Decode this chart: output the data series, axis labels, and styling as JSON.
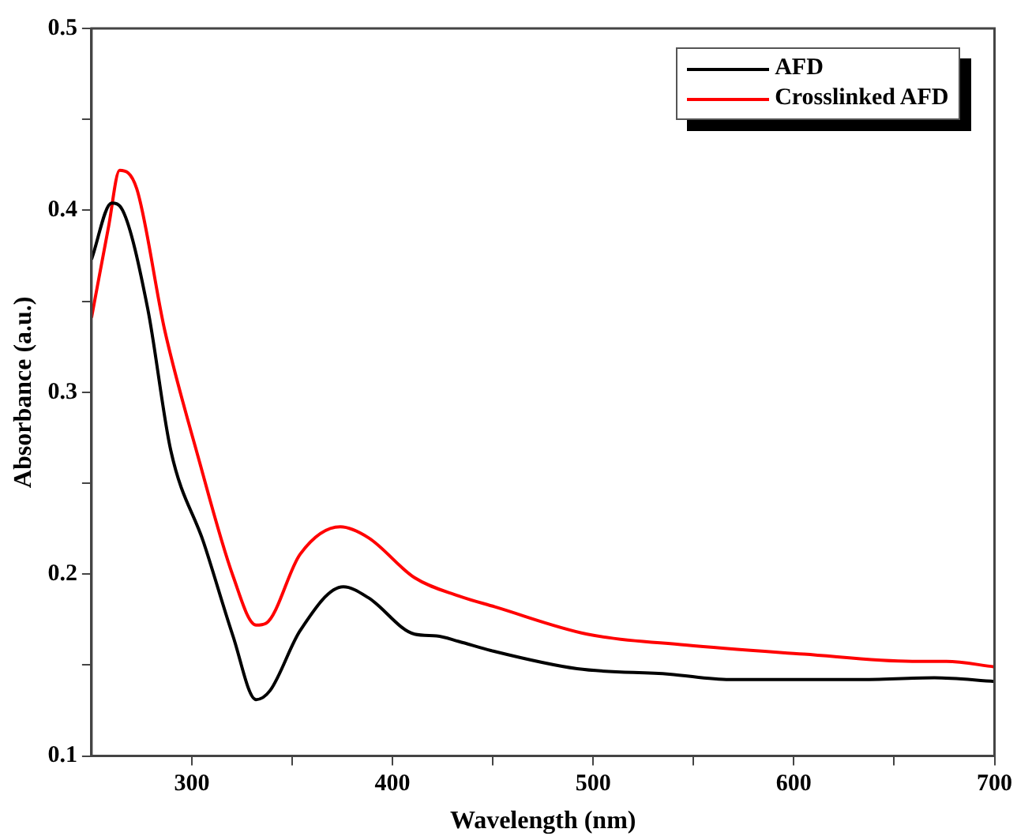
{
  "chart_data": {
    "type": "line",
    "xlabel": "Wavelength (nm)",
    "ylabel": "Absorbance (a.u.)",
    "xlim": [
      250,
      700
    ],
    "ylim": [
      0.1,
      0.5
    ],
    "xticks": [
      300,
      {
        "value": 350,
        "label": null
      },
      400,
      {
        "value": 450,
        "label": null
      },
      500,
      {
        "value": 550,
        "label": null
      },
      600,
      {
        "value": 650,
        "label": null
      },
      700
    ],
    "yticks": [
      0.1,
      {
        "value": 0.15,
        "label": null
      },
      0.2,
      {
        "value": 0.25,
        "label": null
      },
      0.3,
      {
        "value": 0.35,
        "label": null
      },
      0.4,
      {
        "value": 0.45,
        "label": null
      },
      0.5
    ],
    "grid": false,
    "legend": "top right",
    "marker": "none",
    "line_style": "solid",
    "series": [
      {
        "name": "AFD",
        "color": "#000000",
        "x": [
          250,
          260,
          265.5,
          278,
          289.5,
          306,
          320.5,
          332,
          339,
          354,
          375.5,
          388,
          411,
          422,
          433,
          449,
          492,
          538,
          568,
          632,
          670,
          700
        ],
        "values": [
          0.373,
          0.404,
          0.4,
          0.346,
          0.268,
          0.217,
          0.166,
          0.131,
          0.136,
          0.169,
          0.193,
          0.187,
          0.167,
          0.166,
          0.163,
          0.158,
          0.148,
          0.145,
          0.142,
          0.142,
          0.143,
          0.141
        ]
      },
      {
        "name": "Crosslinked AFD",
        "color": "#ff0000",
        "x": [
          250,
          258.5,
          264,
          272.5,
          286.5,
          303,
          320.5,
          332,
          337,
          354,
          374,
          388,
          411,
          433,
          451,
          497,
          546,
          605,
          659,
          676,
          700
        ],
        "values": [
          0.341,
          0.391,
          0.422,
          0.412,
          0.334,
          0.265,
          0.199,
          0.172,
          0.173,
          0.211,
          0.226,
          0.22,
          0.198,
          0.188,
          0.182,
          0.167,
          0.161,
          0.156,
          0.152,
          0.152,
          0.149
        ]
      }
    ]
  }
}
